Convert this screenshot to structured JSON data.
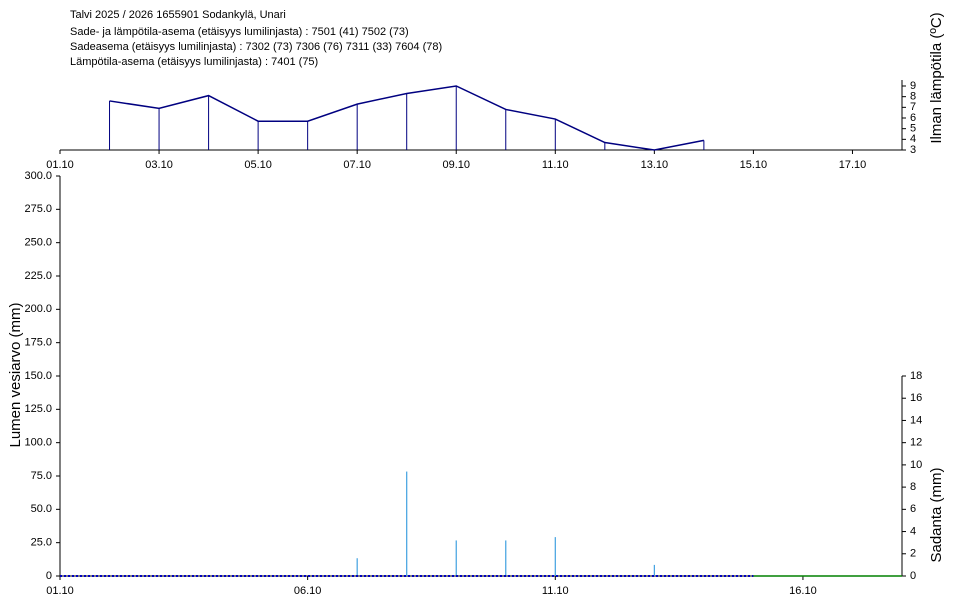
{
  "chart_data": [
    {
      "type": "line",
      "title": "Talvi 2025 / 2026 1655901 Sodankylä, Unari",
      "subtitles": [
        "Sade- ja lämpötila-asema (etäisyys lumilinjasta) :  7501 (41) 7502 (73)",
        "Sadeasema (etäisyys lumilinjasta) :  7302 (73) 7306 (76) 7311 (33) 7604 (78)",
        "Lämpötila-asema (etäisyys lumilinjasta) :  7401 (75)"
      ],
      "ylabel": "Ilman lämpötila (ºC)",
      "x": [
        "02.10",
        "03.10",
        "04.10",
        "05.10",
        "06.10",
        "07.10",
        "08.10",
        "09.10",
        "10.10",
        "11.10",
        "12.10",
        "13.10",
        "14.10"
      ],
      "values": [
        7.6,
        6.9,
        8.1,
        5.7,
        5.7,
        7.3,
        8.3,
        9.0,
        6.8,
        5.9,
        3.7,
        3.0,
        3.9
      ],
      "color": "#000080",
      "xlim": [
        "01.10",
        "18.10"
      ],
      "xticks": [
        "01.10",
        "03.10",
        "05.10",
        "07.10",
        "09.10",
        "11.10",
        "13.10",
        "15.10",
        "17.10"
      ],
      "ylim": [
        3,
        10.5
      ],
      "yticks": [
        3,
        4,
        5,
        6,
        7,
        8,
        9
      ]
    },
    {
      "type": "combo",
      "ylabel": "Lumen vesiarvo (mm)",
      "y2label": "Sadanta (mm)",
      "xlim": [
        "01.10",
        "18.10"
      ],
      "xticks": [
        "01.10",
        "06.10",
        "11.10",
        "16.10"
      ],
      "ylim": [
        0,
        300
      ],
      "yticks": [
        0,
        {
          "value": 25,
          "label": "25.0"
        },
        {
          "value": 50,
          "label": "50.0"
        },
        {
          "value": 75,
          "label": "75.0"
        },
        {
          "value": 100,
          "label": "100.0"
        },
        {
          "value": 125,
          "label": "125.0"
        },
        {
          "value": 150,
          "label": "150.0"
        },
        {
          "value": 175,
          "label": "175.0"
        },
        {
          "value": 200,
          "label": "200.0"
        },
        {
          "value": 225,
          "label": "225.0"
        },
        {
          "value": 250,
          "label": "250.0"
        },
        {
          "value": 275,
          "label": "275.0"
        },
        {
          "value": 300,
          "label": "300.0"
        }
      ],
      "y2lim": [
        0,
        36
      ],
      "y2ticks": [
        0,
        2,
        4,
        6,
        8,
        10,
        12,
        14,
        16,
        18
      ],
      "series": [
        {
          "type": "bar",
          "axis": "y2",
          "color": "#3fa0e0",
          "x": [
            "07.10",
            "08.10",
            "09.10",
            "10.10",
            "11.10",
            "13.10"
          ],
          "values": [
            1.6,
            9.4,
            3.2,
            3.2,
            3.5,
            1.0
          ]
        },
        {
          "type": "line",
          "color": "#0000c0",
          "dashed": true,
          "x": [
            "01.10",
            "15.10"
          ],
          "values": [
            0,
            0
          ]
        },
        {
          "type": "line",
          "color": "#008000",
          "dashed": false,
          "x": [
            "15.10",
            "18.10"
          ],
          "values": [
            0,
            0
          ]
        }
      ]
    }
  ]
}
